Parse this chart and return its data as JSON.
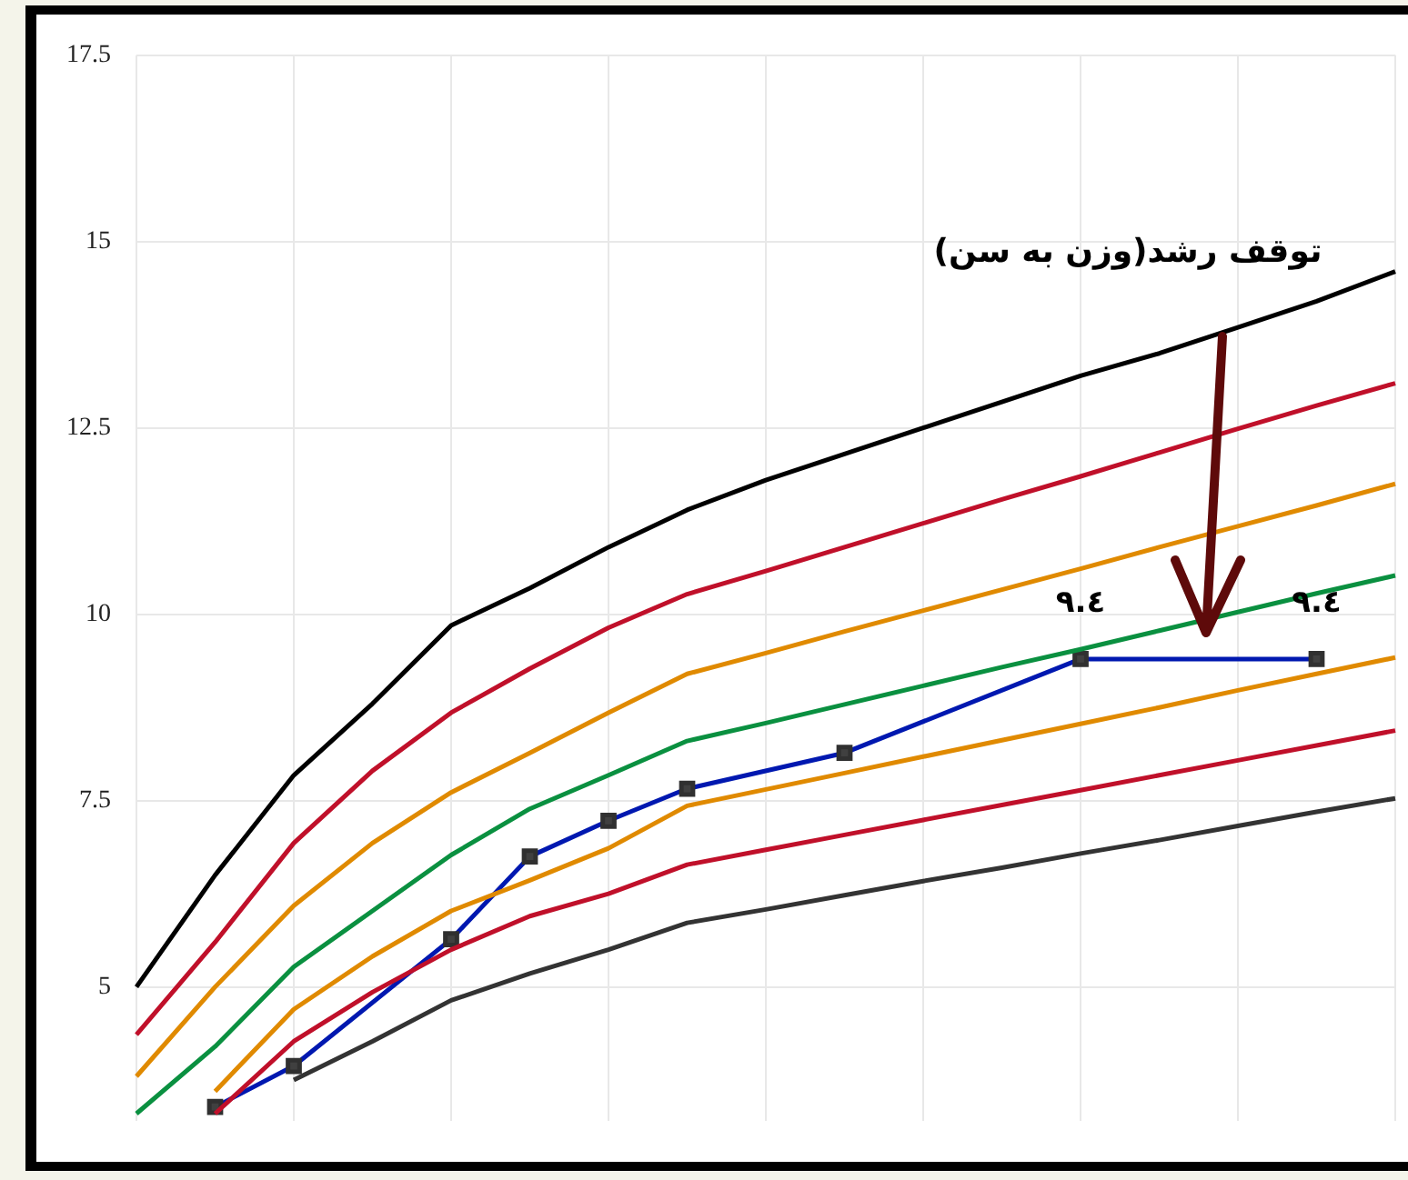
{
  "chart_data": {
    "type": "line",
    "categories": [
      null,
      null,
      null,
      null,
      null,
      null,
      null,
      null,
      null,
      null,
      null,
      null,
      null,
      null,
      null,
      null,
      null
    ],
    "series": [
      {
        "color": "#000000",
        "values": [
          5.0,
          6.5,
          7.84,
          8.8,
          9.85,
          10.35,
          10.9,
          11.4,
          11.8,
          12.15,
          12.5,
          12.85,
          13.2,
          13.5,
          13.85,
          14.2,
          14.6
        ]
      },
      {
        "color": "#c0102a",
        "values": [
          4.36,
          5.6,
          6.93,
          7.9,
          8.68,
          9.27,
          9.82,
          10.27,
          10.58,
          10.9,
          11.22,
          11.54,
          11.85,
          12.17,
          12.49,
          12.8,
          13.1
        ]
      },
      {
        "color": "#e08a00",
        "values": [
          3.8,
          5.0,
          6.09,
          6.93,
          7.61,
          8.14,
          8.68,
          9.2,
          9.48,
          9.77,
          10.05,
          10.33,
          10.61,
          10.9,
          11.18,
          11.46,
          11.75
        ]
      },
      {
        "color": "#0a9040",
        "values": [
          3.3,
          4.2,
          5.27,
          6.02,
          6.77,
          7.39,
          7.84,
          8.3,
          8.54,
          8.79,
          9.04,
          9.29,
          9.53,
          9.78,
          10.03,
          10.28,
          10.52
        ]
      },
      {
        "color": "#e08a00",
        "values": [
          null,
          3.6,
          4.7,
          5.41,
          6.02,
          6.43,
          6.86,
          7.43,
          7.65,
          7.87,
          8.09,
          8.31,
          8.53,
          8.75,
          8.98,
          9.2,
          9.42
        ]
      },
      {
        "color": "#c0102a",
        "values": [
          null,
          3.3,
          4.27,
          4.93,
          5.5,
          5.95,
          6.25,
          6.64,
          6.84,
          7.04,
          7.24,
          7.44,
          7.64,
          7.84,
          8.04,
          8.24,
          8.44
        ]
      },
      {
        "color": "#333333",
        "values": [
          null,
          null,
          3.75,
          4.27,
          4.82,
          5.18,
          5.5,
          5.86,
          6.04,
          6.23,
          6.42,
          6.6,
          6.79,
          6.97,
          7.16,
          7.35,
          7.53
        ]
      },
      {
        "color": "#0018b0",
        "marker": "square",
        "values": [
          null,
          3.39,
          3.94,
          null,
          5.64,
          6.75,
          7.23,
          7.66,
          null,
          8.14,
          null,
          null,
          9.4,
          null,
          null,
          9.4,
          null
        ],
        "value_labels": [
          null,
          null,
          null,
          null,
          null,
          null,
          null,
          null,
          null,
          null,
          null,
          null,
          "٩.٤",
          null,
          null,
          "٩.٤",
          null
        ]
      }
    ],
    "ylim": [
      3.2,
      17.5
    ],
    "yticks": [
      5,
      7.5,
      10,
      12.5,
      15,
      17.5
    ],
    "grid": true,
    "legend": false,
    "tick_labels": "y",
    "line_style": "solid",
    "annotations": [
      "توقف رشد(وزن به سن)"
    ]
  }
}
